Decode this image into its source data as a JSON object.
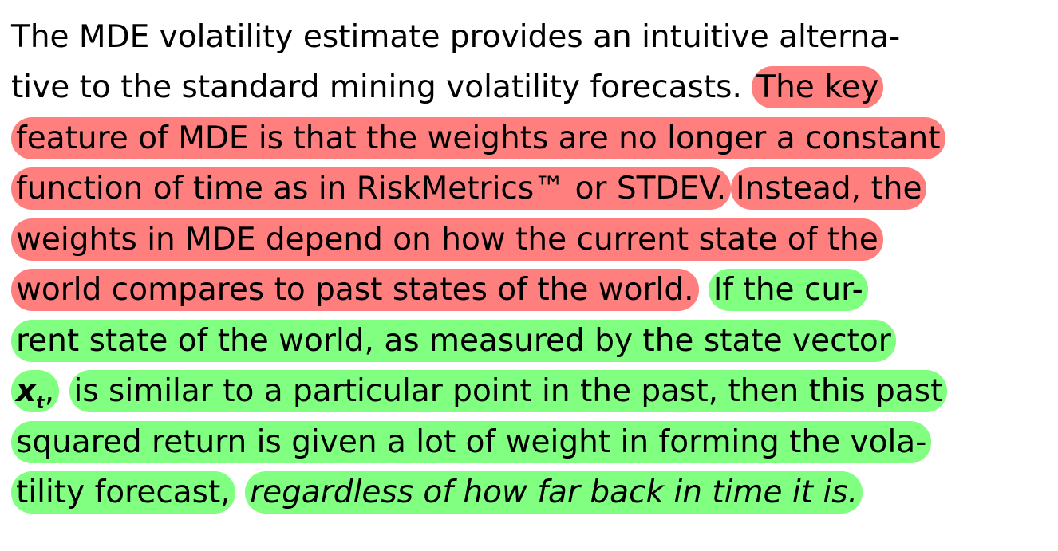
{
  "paragraph": {
    "lines": [
      [
        "The MDE volatility estimate provides an intuitive alterna-"
      ],
      [
        "tive to the standard mining volatility forecasts.",
        "The key"
      ],
      [
        "feature of MDE is that the weights are no longer a constant"
      ],
      [
        "function of time as in RiskMetrics™ or STDEV.",
        "Instead, the"
      ],
      [
        "weights in MDE depend on how the current state of the"
      ],
      [
        "world compares to past states of the world.",
        "If the cur-"
      ],
      [
        "rent state of the world, as measured by the state vector"
      ],
      [
        "x",
        "t",
        ",",
        "is similar to a particular point in the past, then this past"
      ],
      [
        "squared return is given a lot of weight in forming the vola-"
      ],
      [
        "tility forecast,",
        "regardless of how far back in time it is."
      ]
    ]
  }
}
